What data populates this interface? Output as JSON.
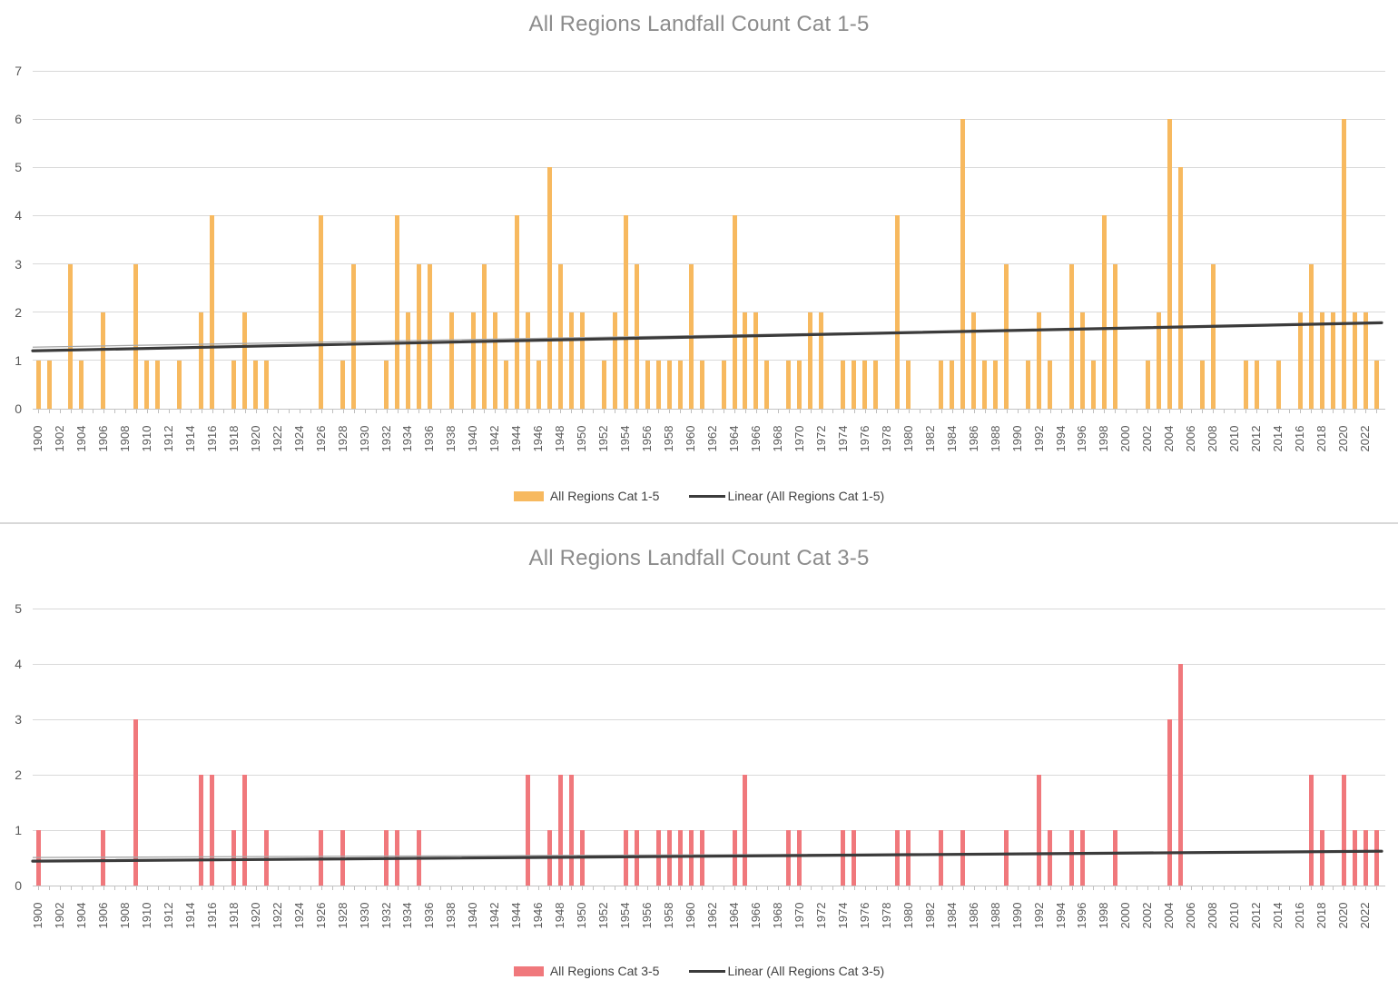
{
  "styles": {
    "background": "#FFFFFF",
    "grid_color": "#D9D9D9",
    "baseline_color": "#C3C3C3",
    "tick_color": "#BFBFBF",
    "axis_text_color": "#595959",
    "title_color": "#8C8C8C",
    "legend_text_color": "#3F3F3F",
    "divider_color": "#D8D8D8"
  },
  "chart_data": [
    {
      "type": "bar",
      "title": "All Regions Landfall Count Cat 1-5",
      "series_name": "All Regions Cat 1-5",
      "bar_color": "#F7B95F",
      "x_start": 1900,
      "x_end": 2023,
      "x_tick_label_step": 2,
      "ylim": [
        0,
        7
      ],
      "y_tick_step": 1,
      "grid": true,
      "legend_position": "bottom",
      "values": [
        1,
        1,
        0,
        3,
        1,
        0,
        2,
        0,
        0,
        3,
        1,
        1,
        0,
        1,
        0,
        2,
        4,
        0,
        1,
        2,
        1,
        1,
        0,
        0,
        0,
        0,
        4,
        0,
        1,
        3,
        0,
        0,
        1,
        4,
        2,
        3,
        3,
        0,
        2,
        0,
        2,
        3,
        2,
        1,
        4,
        2,
        1,
        5,
        3,
        2,
        2,
        0,
        1,
        2,
        4,
        3,
        1,
        1,
        1,
        1,
        3,
        1,
        0,
        1,
        4,
        2,
        2,
        1,
        0,
        1,
        1,
        2,
        2,
        0,
        1,
        1,
        1,
        1,
        0,
        4,
        1,
        0,
        0,
        1,
        1,
        6,
        2,
        1,
        1,
        3,
        0,
        1,
        2,
        1,
        0,
        3,
        2,
        1,
        4,
        3,
        0,
        0,
        1,
        2,
        6,
        5,
        0,
        1,
        3,
        0,
        0,
        1,
        1,
        0,
        1,
        0,
        2,
        3,
        2,
        2,
        6,
        2,
        2,
        1
      ],
      "trendline": {
        "name": "Linear (All Regions Cat 1-5)",
        "color": "#3B3B3B",
        "start_value": 1.2,
        "end_value": 1.78
      }
    },
    {
      "type": "bar",
      "title": "All Regions Landfall Count Cat 3-5",
      "series_name": "All Regions Cat 3-5",
      "bar_color": "#F0787C",
      "x_start": 1900,
      "x_end": 2023,
      "x_tick_label_step": 2,
      "ylim": [
        0,
        5
      ],
      "y_tick_step": 1,
      "grid": true,
      "legend_position": "bottom",
      "values": [
        1,
        0,
        0,
        0,
        0,
        0,
        1,
        0,
        0,
        3,
        0,
        0,
        0,
        0,
        0,
        2,
        2,
        0,
        1,
        2,
        0,
        1,
        0,
        0,
        0,
        0,
        1,
        0,
        1,
        0,
        0,
        0,
        1,
        1,
        0,
        1,
        0,
        0,
        0,
        0,
        0,
        0,
        0,
        0,
        0,
        2,
        0,
        1,
        2,
        2,
        1,
        0,
        0,
        0,
        1,
        1,
        0,
        1,
        1,
        1,
        1,
        1,
        0,
        0,
        1,
        2,
        0,
        0,
        0,
        1,
        1,
        0,
        0,
        0,
        1,
        1,
        0,
        0,
        0,
        1,
        1,
        0,
        0,
        1,
        0,
        1,
        0,
        0,
        0,
        1,
        0,
        0,
        2,
        1,
        0,
        1,
        1,
        0,
        0,
        1,
        0,
        0,
        0,
        0,
        3,
        4,
        0,
        0,
        0,
        0,
        0,
        0,
        0,
        0,
        0,
        0,
        0,
        2,
        1,
        0,
        2,
        1,
        1,
        1
      ],
      "trendline": {
        "name": "Linear (All Regions Cat 3-5)",
        "color": "#3B3B3B",
        "start_value": 0.44,
        "end_value": 0.62
      }
    }
  ]
}
